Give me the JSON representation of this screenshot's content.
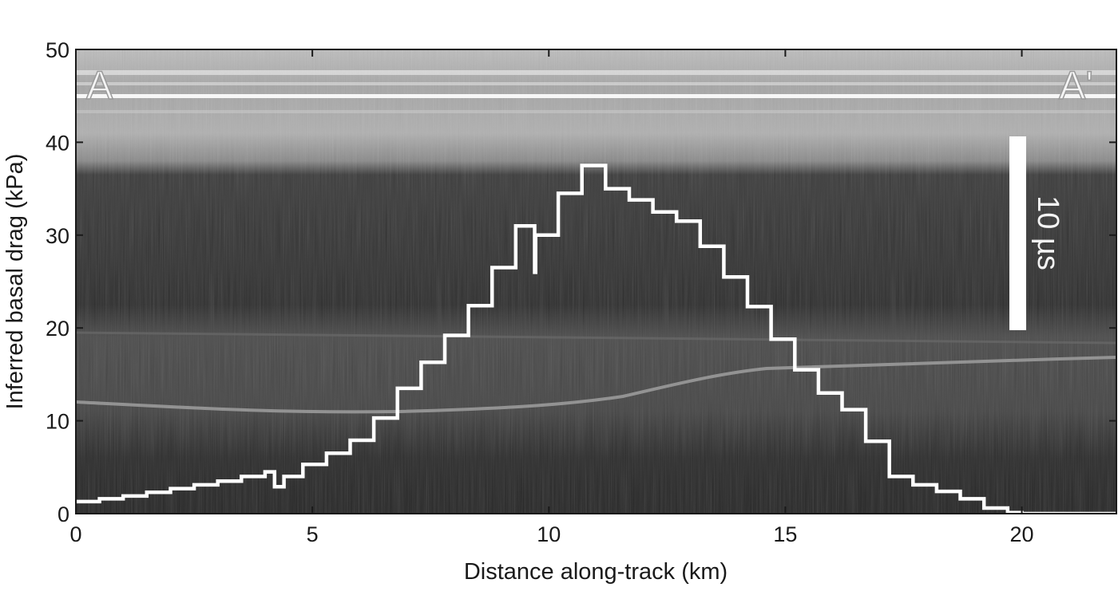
{
  "chart_data": {
    "type": "line",
    "xlabel": "Distance along-track (km)",
    "ylabel": "Inferred basal drag (kPa)",
    "xlim": [
      0,
      22
    ],
    "ylim": [
      0,
      50
    ],
    "x_ticks": [
      0,
      5,
      10,
      15,
      20
    ],
    "y_ticks": [
      0,
      10,
      20,
      30,
      40,
      50
    ],
    "grid": false,
    "background": "radar echogram (grayscale)",
    "annotations": {
      "left_label": "A",
      "right_label": "A'",
      "scale_bar": "10 µs"
    },
    "series": [
      {
        "style": "step",
        "color": "#ffffff",
        "x": [
          0,
          0.5,
          1.0,
          1.5,
          2.0,
          2.5,
          3.0,
          3.5,
          4.0,
          4.2,
          4.2,
          4.4,
          4.8,
          5.3,
          5.8,
          6.3,
          6.8,
          7.3,
          7.8,
          8.3,
          8.8,
          9.3,
          9.55,
          9.7,
          9.7,
          9.72,
          9.72,
          10.2,
          10.7,
          11.2,
          11.7,
          12.2,
          12.7,
          13.2,
          13.7,
          14.2,
          14.7,
          15.2,
          15.7,
          16.2,
          16.7,
          17.2,
          17.7,
          18.2,
          18.7,
          19.2,
          19.7,
          20.0,
          22.0
        ],
        "y": [
          1.3,
          1.6,
          1.9,
          2.3,
          2.7,
          3.1,
          3.5,
          4.0,
          4.5,
          4.1,
          2.9,
          4.0,
          5.3,
          6.5,
          7.9,
          10.3,
          13.5,
          16.3,
          19.2,
          22.4,
          26.5,
          31.0,
          31.0,
          29.0,
          26.0,
          26.0,
          30.0,
          34.5,
          37.5,
          35.0,
          33.8,
          32.5,
          31.5,
          28.8,
          25.5,
          22.3,
          18.8,
          15.5,
          13.0,
          11.2,
          7.8,
          4.0,
          3.1,
          2.4,
          1.6,
          0.6,
          0.1,
          0.0,
          0.0
        ]
      }
    ]
  }
}
